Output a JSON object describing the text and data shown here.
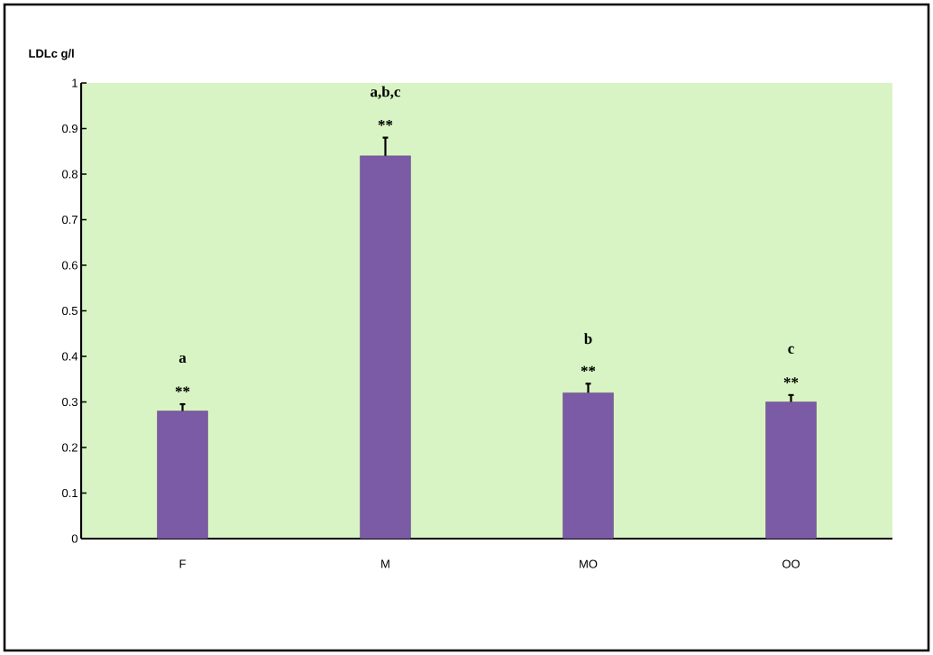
{
  "chart_data": {
    "type": "bar",
    "ylabel": "LDLc g/l",
    "categories": [
      "F",
      "M",
      "MO",
      "OO"
    ],
    "values": [
      0.28,
      0.84,
      0.32,
      0.3
    ],
    "errors": [
      0.015,
      0.04,
      0.02,
      0.015
    ],
    "color": "#7b5aa6",
    "ylim": [
      0,
      1
    ],
    "yticks": [
      0,
      0.1,
      0.2,
      0.3,
      0.4,
      0.5,
      0.6,
      0.7,
      0.8,
      0.9,
      1
    ],
    "annotations": [
      "a",
      "**",
      "a,b,c",
      "**",
      "b",
      "**",
      "c",
      "**"
    ]
  }
}
